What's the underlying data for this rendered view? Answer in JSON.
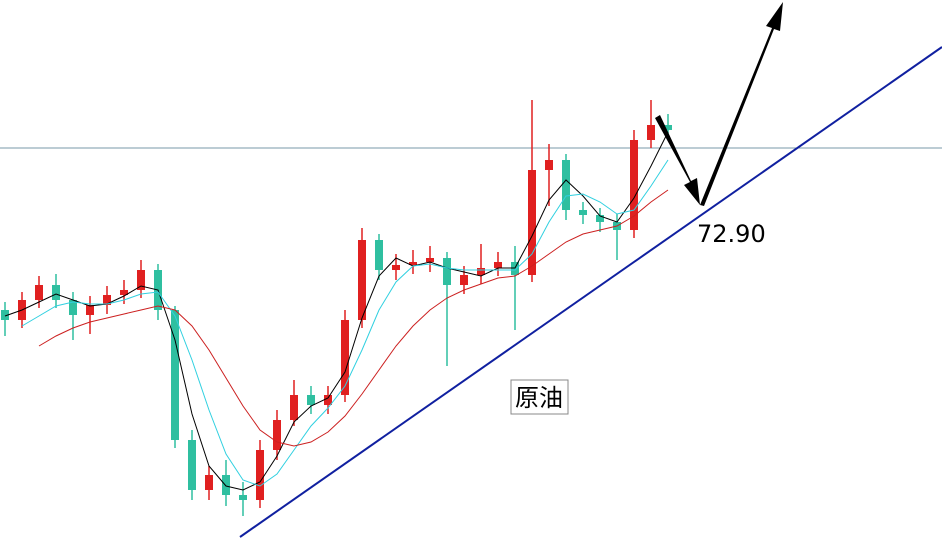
{
  "chart_data": {
    "type": "candlestick",
    "ylim": [
      55.9,
      83.3
    ],
    "up_color": "#e02020",
    "down_color": "#2fbfa0",
    "open": [
      67.8,
      67.3,
      68.3,
      69.05,
      68.3,
      67.55,
      68.05,
      68.55,
      68.8,
      69.8,
      67.8,
      61.3,
      58.8,
      59.55,
      58.55,
      58.3,
      60.8,
      62.3,
      63.55,
      63.05,
      63.55,
      67.3,
      71.3,
      69.8,
      70.05,
      70.2,
      70.4,
      69.05,
      69.55,
      69.9,
      70.2,
      69.55,
      74.8,
      75.3,
      72.8,
      72.55,
      72.2,
      71.8,
      76.3,
      77.05
    ],
    "high": [
      68.2,
      68.7,
      69.5,
      69.6,
      68.7,
      68.5,
      69.0,
      69.3,
      70.3,
      70.1,
      68.0,
      61.8,
      60.0,
      60.3,
      59.2,
      61.3,
      62.8,
      64.3,
      64.0,
      64.0,
      67.8,
      71.9,
      71.6,
      70.6,
      70.8,
      71.0,
      70.7,
      70.0,
      71.1,
      70.7,
      71.0,
      78.3,
      76.1,
      75.6,
      73.2,
      72.9,
      72.6,
      76.8,
      78.3,
      77.6
    ],
    "low": [
      66.5,
      66.9,
      67.9,
      67.9,
      66.3,
      66.6,
      67.6,
      68.1,
      68.4,
      67.3,
      60.9,
      58.3,
      58.3,
      58.0,
      57.5,
      57.9,
      60.3,
      62.0,
      62.6,
      62.6,
      63.2,
      66.9,
      69.3,
      69.3,
      69.6,
      69.7,
      65.0,
      68.6,
      69.1,
      69.5,
      66.8,
      69.2,
      73.0,
      72.3,
      72.1,
      71.7,
      70.3,
      71.4,
      75.9,
      76.4
    ],
    "close": [
      67.3,
      68.3,
      69.05,
      68.3,
      67.55,
      68.05,
      68.55,
      68.8,
      69.8,
      67.8,
      61.3,
      58.8,
      59.55,
      58.55,
      58.3,
      60.8,
      62.3,
      63.55,
      63.05,
      63.55,
      67.3,
      71.3,
      69.8,
      70.05,
      70.2,
      70.4,
      69.05,
      69.55,
      69.9,
      70.2,
      69.55,
      74.8,
      75.3,
      72.8,
      72.55,
      72.2,
      71.8,
      76.3,
      77.05,
      76.8
    ],
    "lines": [
      {
        "color": "#000000",
        "values": [
          67.5,
          67.8,
          68.2,
          68.6,
          68.3,
          68.0,
          68.1,
          68.5,
          69.0,
          68.8,
          66.3,
          62.6,
          60.0,
          59.0,
          58.8,
          59.2,
          60.5,
          62.2,
          63.0,
          63.4,
          64.7,
          67.4,
          69.5,
          70.4,
          70.0,
          70.2,
          69.9,
          69.7,
          69.5,
          69.9,
          69.9,
          71.5,
          73.3,
          74.3,
          73.5,
          72.5,
          72.2,
          73.4,
          75.0,
          76.7
        ]
      },
      {
        "color": "#30d0e0",
        "values": [
          null,
          67.0,
          67.5,
          68.0,
          68.2,
          68.1,
          68.1,
          68.3,
          68.6,
          68.7,
          67.5,
          65.3,
          62.8,
          60.6,
          59.3,
          59.0,
          59.6,
          60.8,
          62.0,
          62.9,
          64.0,
          65.8,
          67.8,
          69.2,
          70.0,
          70.1,
          69.9,
          69.8,
          69.8,
          69.8,
          69.8,
          70.6,
          72.2,
          73.5,
          73.6,
          73.2,
          72.6,
          72.8,
          74.0,
          75.3
        ]
      },
      {
        "color": "#cc2020",
        "values": [
          null,
          null,
          66.0,
          66.5,
          66.9,
          67.2,
          67.4,
          67.6,
          67.8,
          68.0,
          67.8,
          67.0,
          65.8,
          64.4,
          63.0,
          61.8,
          61.2,
          61.0,
          61.2,
          61.7,
          62.5,
          63.6,
          64.8,
          66.0,
          67.0,
          67.8,
          68.4,
          68.8,
          69.1,
          69.4,
          69.5,
          70.0,
          70.6,
          71.2,
          71.6,
          71.8,
          72.0,
          72.5,
          73.2,
          73.8
        ]
      }
    ],
    "hline": 75.9,
    "annotations": [
      "72.90",
      "原油"
    ]
  }
}
